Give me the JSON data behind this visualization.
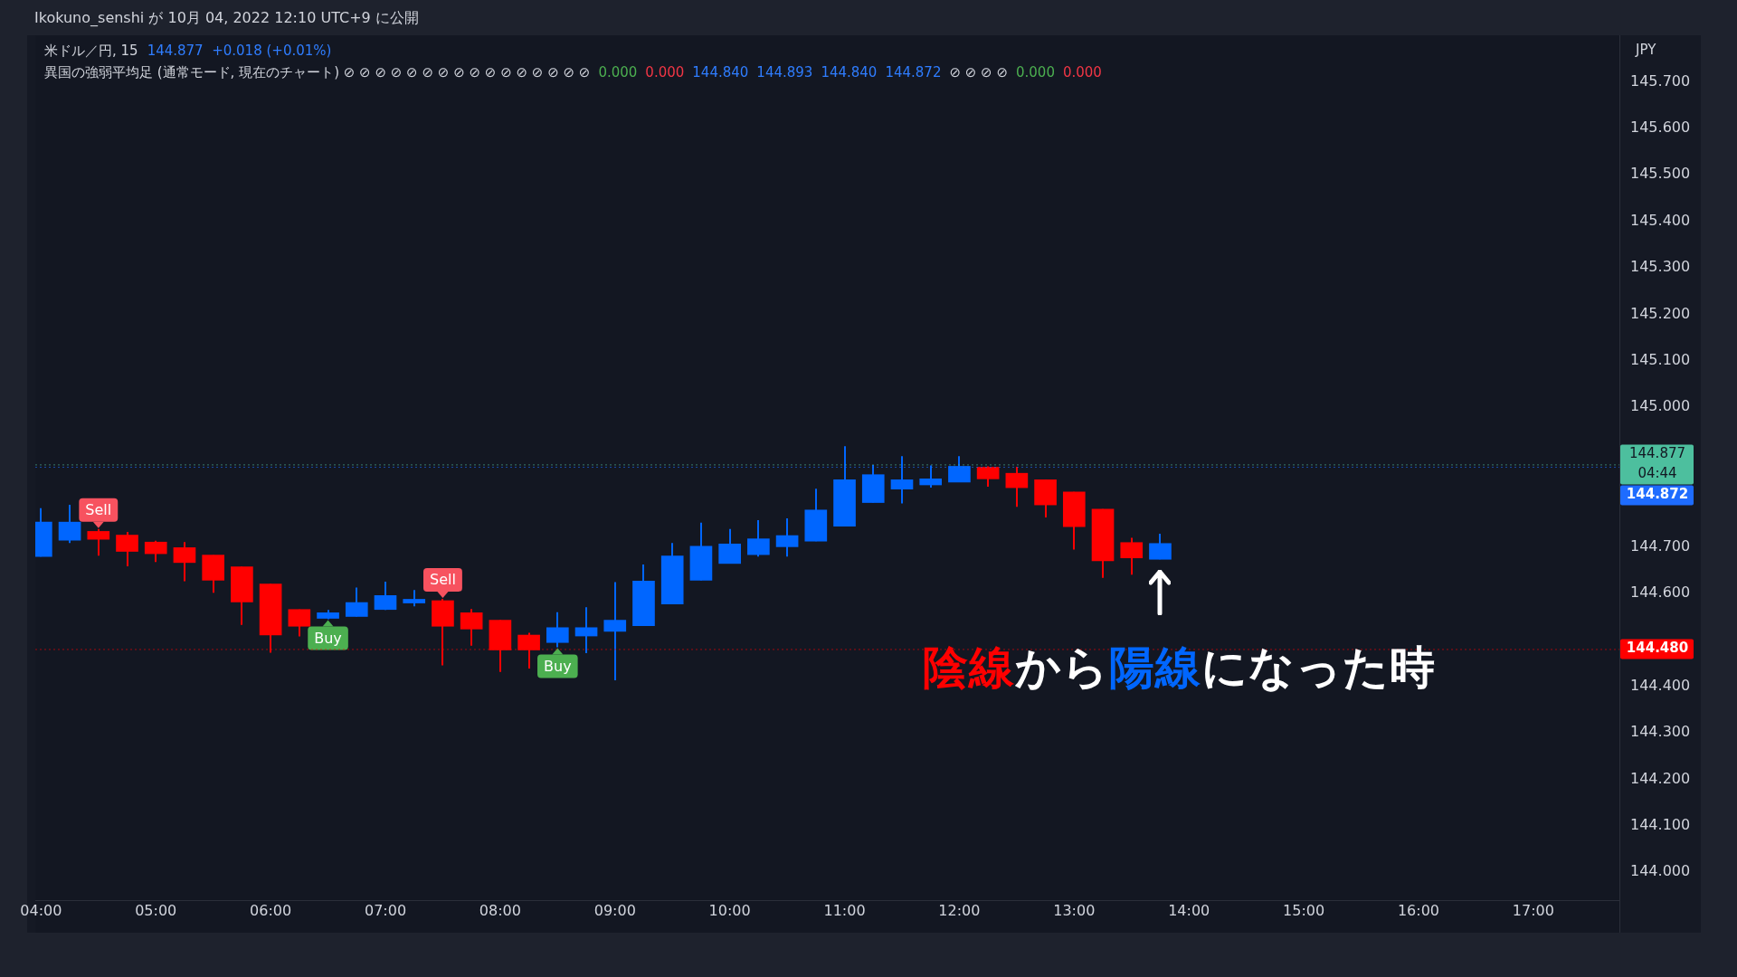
{
  "chart_data": {
    "type": "candlestick",
    "title": "米ドル／円, 15",
    "subtitle": "144.877  +0.018 (+0.01%)",
    "ylabel": "JPY",
    "x": [
      4,
      4.25,
      4.5,
      4.75,
      5,
      5.25,
      5.5,
      5.75,
      6,
      6.25,
      6.5,
      6.75,
      7,
      7.25,
      7.5,
      7.75,
      8,
      8.25,
      8.5,
      8.75,
      9,
      9.25,
      9.5,
      9.75,
      10,
      10.25,
      10.5,
      10.75,
      11,
      11.25,
      11.5,
      11.75,
      12,
      12.25,
      12.5,
      12.75,
      13,
      13.25,
      13.5,
      13.75
    ],
    "ohlc": [
      [
        144.679,
        144.783,
        144.679,
        144.753
      ],
      [
        144.714,
        144.79,
        144.708,
        144.753
      ],
      [
        144.733,
        144.738,
        144.681,
        144.716
      ],
      [
        144.725,
        144.732,
        144.658,
        144.69
      ],
      [
        144.71,
        144.713,
        144.667,
        144.685
      ],
      [
        144.698,
        144.71,
        144.626,
        144.666
      ],
      [
        144.682,
        144.682,
        144.601,
        144.628
      ],
      [
        144.657,
        144.657,
        144.532,
        144.581
      ],
      [
        144.62,
        144.62,
        144.472,
        144.51
      ],
      [
        144.565,
        144.565,
        144.507,
        144.529
      ],
      [
        144.546,
        144.564,
        144.544,
        144.558
      ],
      [
        144.55,
        144.612,
        144.55,
        144.58
      ],
      [
        144.565,
        144.625,
        144.564,
        144.595
      ],
      [
        144.579,
        144.607,
        144.572,
        144.587
      ],
      [
        144.584,
        144.588,
        144.445,
        144.529
      ],
      [
        144.558,
        144.566,
        144.487,
        144.523
      ],
      [
        144.542,
        144.542,
        144.431,
        144.478
      ],
      [
        144.51,
        144.515,
        144.438,
        144.478
      ],
      [
        144.494,
        144.559,
        144.484,
        144.526
      ],
      [
        144.508,
        144.57,
        144.471,
        144.526
      ],
      [
        144.518,
        144.624,
        144.413,
        144.542
      ],
      [
        144.53,
        144.662,
        144.53,
        144.626
      ],
      [
        144.577,
        144.708,
        144.577,
        144.68
      ],
      [
        144.628,
        144.752,
        144.628,
        144.701
      ],
      [
        144.664,
        144.738,
        144.664,
        144.706
      ],
      [
        144.683,
        144.757,
        144.679,
        144.717
      ],
      [
        144.7,
        144.761,
        144.679,
        144.724
      ],
      [
        144.712,
        144.825,
        144.712,
        144.779
      ],
      [
        144.744,
        144.916,
        144.744,
        144.844
      ],
      [
        144.795,
        144.876,
        144.795,
        144.855
      ],
      [
        144.824,
        144.895,
        144.793,
        144.844
      ],
      [
        144.833,
        144.875,
        144.827,
        144.846
      ],
      [
        144.839,
        144.895,
        144.839,
        144.873
      ],
      [
        144.871,
        144.873,
        144.829,
        144.846
      ],
      [
        144.858,
        144.872,
        144.786,
        144.827
      ],
      [
        144.844,
        144.844,
        144.763,
        144.79
      ],
      [
        144.818,
        144.818,
        144.694,
        144.743
      ],
      [
        144.781,
        144.781,
        144.633,
        144.67
      ],
      [
        144.709,
        144.719,
        144.64,
        144.676
      ],
      [
        144.673,
        144.728,
        144.673,
        144.707
      ]
    ],
    "colors": [
      "#0066ff",
      "#0066ff",
      "#ff0000",
      "#ff0000",
      "#ff0000",
      "#ff0000",
      "#ff0000",
      "#ff0000",
      "#ff0000",
      "#ff0000",
      "#0066ff",
      "#0066ff",
      "#0066ff",
      "#0066ff",
      "#ff0000",
      "#ff0000",
      "#ff0000",
      "#ff0000",
      "#0066ff",
      "#0066ff",
      "#0066ff",
      "#0066ff",
      "#0066ff",
      "#0066ff",
      "#0066ff",
      "#0066ff",
      "#0066ff",
      "#0066ff",
      "#0066ff",
      "#0066ff",
      "#0066ff",
      "#0066ff",
      "#0066ff",
      "#ff0000",
      "#ff0000",
      "#ff0000",
      "#ff0000",
      "#ff0000",
      "#ff0000",
      "#0066ff"
    ],
    "xlim": [
      3.95,
      17.75
    ],
    "xticks": [
      {
        "value": 4,
        "label": "04:00"
      },
      {
        "value": 5,
        "label": "05:00"
      },
      {
        "value": 6,
        "label": "06:00"
      },
      {
        "value": 7,
        "label": "07:00"
      },
      {
        "value": 8,
        "label": "08:00"
      },
      {
        "value": 9,
        "label": "09:00"
      },
      {
        "value": 10,
        "label": "10:00"
      },
      {
        "value": 11,
        "label": "11:00"
      },
      {
        "value": 12,
        "label": "12:00"
      },
      {
        "value": 13,
        "label": "13:00"
      },
      {
        "value": 14,
        "label": "14:00"
      },
      {
        "value": 15,
        "label": "15:00"
      },
      {
        "value": 16,
        "label": "16:00"
      },
      {
        "value": 17,
        "label": "17:00"
      }
    ],
    "ylim": [
      143.94,
      145.8
    ],
    "yticks": [
      {
        "value": 144,
        "label": "144.000"
      },
      {
        "value": 144.1,
        "label": "144.100"
      },
      {
        "value": 144.2,
        "label": "144.200"
      },
      {
        "value": 144.3,
        "label": "144.300"
      },
      {
        "value": 144.4,
        "label": "144.400"
      },
      {
        "value": 144.6,
        "label": "144.600"
      },
      {
        "value": 144.7,
        "label": "144.700"
      },
      {
        "value": 145,
        "label": "145.000"
      },
      {
        "value": 145.1,
        "label": "145.100"
      },
      {
        "value": 145.2,
        "label": "145.200"
      },
      {
        "value": 145.3,
        "label": "145.300"
      },
      {
        "value": 145.4,
        "label": "145.400"
      },
      {
        "value": 145.5,
        "label": "145.500"
      },
      {
        "value": 145.6,
        "label": "145.600"
      },
      {
        "value": 145.7,
        "label": "145.700"
      }
    ],
    "ref_lines": [
      {
        "axis": "y",
        "value": 144.877,
        "label": "144.877\n04:44",
        "color": "#4dbf9e"
      },
      {
        "axis": "y",
        "value": 144.872,
        "label": "144.872",
        "color": "#1e6cff"
      },
      {
        "axis": "y",
        "value": 144.48,
        "label": "144.480",
        "color": "#ff0000"
      }
    ],
    "annotations": [
      "Ikokuno_senshi が 10月 04, 2022 12:10 UTC+9 に公開",
      "異国の強弱平均足 (通常モード, 現在のチャート) ⊘ ⊘ ⊘ ⊘ ⊘ ⊘ ⊘ ⊘ ⊘ ⊘ ⊘ ⊘ ⊘ ⊘ ⊘ ⊘",
      "0.000",
      "0.000",
      "144.840",
      "144.893",
      "144.840",
      "144.872",
      "⊘ ⊘ ⊘ ⊘",
      "0.000",
      "0.000",
      "陰線",
      "から",
      "陽線",
      "になった時",
      {
        "text": "Sell",
        "x": 4.5,
        "y": 144.738
      },
      {
        "text": "Buy",
        "x": 6.5,
        "y": 144.544
      },
      {
        "text": "Sell",
        "x": 7.5,
        "y": 144.588
      },
      {
        "text": "Buy",
        "x": 8.5,
        "y": 144.484
      }
    ],
    "grid": false,
    "legend": false
  }
}
